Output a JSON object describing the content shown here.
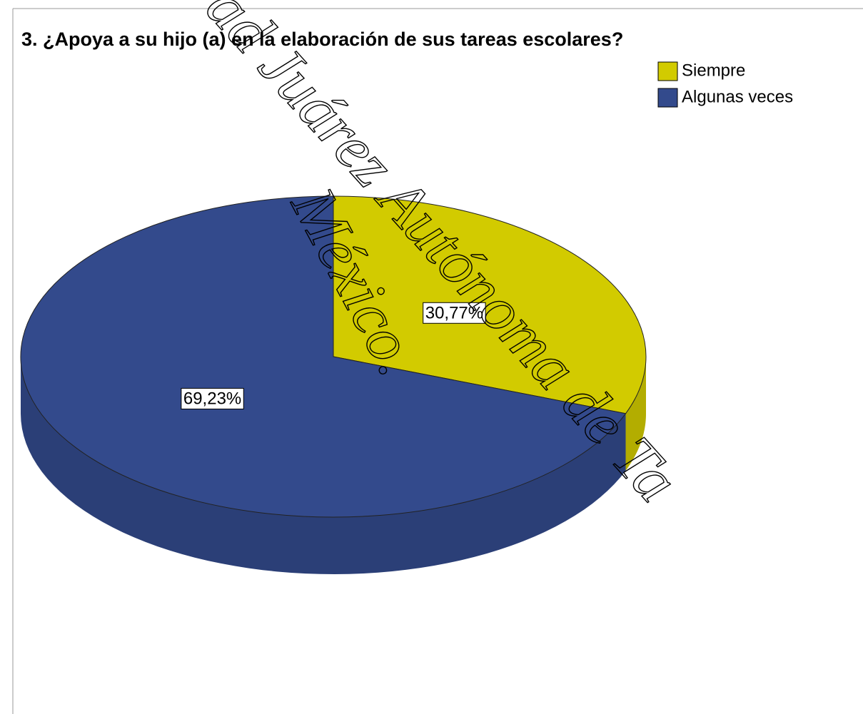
{
  "chart_data": {
    "type": "pie",
    "title": "3. ¿Apoya a su hijo (a) en la elaboración de sus tareas escolares?",
    "categories": [
      "Siempre",
      "Algunas veces"
    ],
    "values": [
      30.77,
      69.23
    ],
    "value_labels": [
      "30,77%",
      "69,23%"
    ],
    "colors": [
      "#d2cb00",
      "#334a8c"
    ],
    "legend": "top-right"
  },
  "watermark": [
    "ad Juárez Autónoma de Ta",
    "México."
  ]
}
